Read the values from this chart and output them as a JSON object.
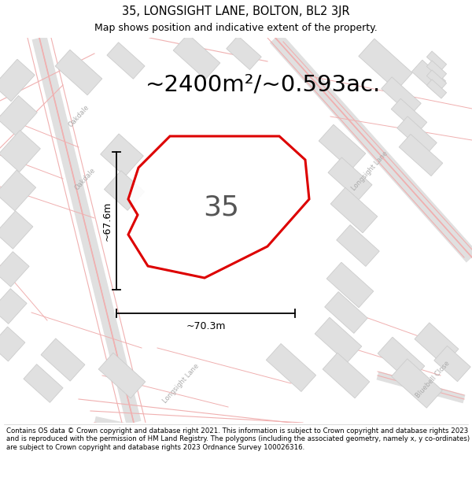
{
  "title": "35, LONGSIGHT LANE, BOLTON, BL2 3JR",
  "subtitle": "Map shows position and indicative extent of the property.",
  "area_text": "~2400m²/~0.593ac.",
  "property_number": "35",
  "width_label": "~70.3m",
  "height_label": "~67.6m",
  "footer": "Contains OS data © Crown copyright and database right 2021. This information is subject to Crown copyright and database rights 2023 and is reproduced with the permission of HM Land Registry. The polygons (including the associated geometry, namely x, y co-ordinates) are subject to Crown copyright and database rights 2023 Ordnance Survey 100026316.",
  "map_bg": "#efefef",
  "polygon_color": "#dd0000",
  "road_color": "#f0b0b0",
  "road_center_color": "#e8e8e8",
  "building_fill": "#e0e0e0",
  "building_edge": "#cccccc",
  "title_fontsize": 10.5,
  "subtitle_fontsize": 9,
  "area_fontsize": 21,
  "number_fontsize": 26,
  "label_fontsize": 9,
  "footer_fontsize": 6.2,
  "road_label_color": "#aaaaaa",
  "road_label_size": 6.0
}
